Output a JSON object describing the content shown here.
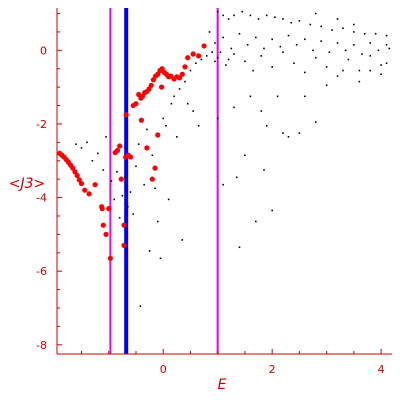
{
  "chart_data": {
    "type": "scatter",
    "title": "",
    "xlabel": "E",
    "ylabel": "<J3>",
    "xlim": [
      -1.95,
      4.2
    ],
    "ylim": [
      -8.25,
      1.15
    ],
    "xticks": [
      0,
      2,
      4
    ],
    "yticks": [
      0,
      -2,
      -4,
      -6,
      -8
    ],
    "grid": false,
    "legend": "none",
    "vertical_lines": [
      {
        "x": -0.97,
        "color": "#ee00ee"
      },
      {
        "x": -0.68,
        "color": "#0000ff"
      },
      {
        "x": 1.0,
        "color": "#ee00ee"
      }
    ],
    "series": [
      {
        "color": "#ff0000",
        "marker": "large",
        "points": [
          [
            -1.9,
            -2.8
          ],
          [
            -1.86,
            -2.85
          ],
          [
            -1.82,
            -2.9
          ],
          [
            -1.78,
            -2.97
          ],
          [
            -1.74,
            -3.04
          ],
          [
            -1.7,
            -3.12
          ],
          [
            -1.66,
            -3.2
          ],
          [
            -1.62,
            -3.3
          ],
          [
            -1.58,
            -3.4
          ],
          [
            -1.54,
            -3.52
          ],
          [
            -1.5,
            -3.62
          ],
          [
            -1.44,
            -3.8
          ],
          [
            -1.36,
            -3.9
          ],
          [
            -1.25,
            -3.65
          ],
          [
            -1.13,
            -4.25
          ],
          [
            -1.12,
            -4.3
          ],
          [
            -1.1,
            -4.75
          ],
          [
            -1.05,
            -5.0
          ],
          [
            -1.0,
            -4.3
          ],
          [
            -0.97,
            -5.65
          ],
          [
            -0.88,
            -2.78
          ],
          [
            -0.84,
            -2.72
          ],
          [
            -0.8,
            -2.6
          ],
          [
            -0.77,
            -3.5
          ],
          [
            -0.72,
            -4.75
          ],
          [
            -0.72,
            -5.3
          ],
          [
            -0.69,
            -2.9
          ],
          [
            -0.68,
            -1.75
          ],
          [
            -0.64,
            -2.85
          ],
          [
            -0.6,
            -2.9
          ],
          [
            -0.55,
            -1.5
          ],
          [
            -0.5,
            -1.45
          ],
          [
            -0.45,
            -1.2
          ],
          [
            -0.41,
            -1.3
          ],
          [
            -0.38,
            -1.25
          ],
          [
            -0.34,
            -1.15
          ],
          [
            -0.3,
            -1.12
          ],
          [
            -0.26,
            -1.05
          ],
          [
            -0.22,
            -0.95
          ],
          [
            -0.18,
            -0.8
          ],
          [
            -0.14,
            -0.7
          ],
          [
            -0.1,
            -0.65
          ],
          [
            -0.06,
            -0.55
          ],
          [
            -0.02,
            -0.5
          ],
          [
            0.02,
            -0.6
          ],
          [
            0.06,
            -0.65
          ],
          [
            0.1,
            -0.72
          ],
          [
            0.14,
            -0.7
          ],
          [
            0.2,
            -0.78
          ],
          [
            0.25,
            -0.72
          ],
          [
            0.3,
            -0.75
          ],
          [
            0.35,
            -0.65
          ],
          [
            0.4,
            -0.45
          ],
          [
            0.45,
            -0.2
          ],
          [
            0.55,
            -0.1
          ],
          [
            0.65,
            -0.15
          ],
          [
            0.75,
            0.12
          ],
          [
            -0.03,
            -1.0
          ],
          [
            -0.4,
            -1.9
          ],
          [
            -0.3,
            -2.65
          ],
          [
            -0.2,
            -3.5
          ],
          [
            -0.15,
            -3.2
          ],
          [
            -0.1,
            -2.3
          ]
        ]
      },
      {
        "color": "#000000",
        "marker": "small",
        "points": [
          [
            -1.6,
            -2.55
          ],
          [
            -1.5,
            -2.65
          ],
          [
            -1.4,
            -2.5
          ],
          [
            -1.3,
            -3.0
          ],
          [
            -1.2,
            -2.8
          ],
          [
            -1.1,
            -3.25
          ],
          [
            -1.05,
            -2.35
          ],
          [
            -0.95,
            -3.55
          ],
          [
            -0.9,
            -4.05
          ],
          [
            -0.85,
            -3.3
          ],
          [
            -0.8,
            -4.55
          ],
          [
            -0.75,
            -3.95
          ],
          [
            -0.7,
            -3.45
          ],
          [
            -0.65,
            -4.25
          ],
          [
            -0.6,
            -3.85
          ],
          [
            -0.55,
            -4.45
          ],
          [
            -0.5,
            -3.15
          ],
          [
            -0.45,
            -2.55
          ],
          [
            -0.42,
            -6.95
          ],
          [
            -0.35,
            -3.65
          ],
          [
            -0.3,
            -2.15
          ],
          [
            -0.25,
            -5.45
          ],
          [
            -0.2,
            -2.85
          ],
          [
            -0.15,
            -3.75
          ],
          [
            -0.1,
            -4.65
          ],
          [
            -0.05,
            -5.65
          ],
          [
            0.0,
            -1.85
          ],
          [
            0.05,
            -2.05
          ],
          [
            0.1,
            -4.05
          ],
          [
            0.15,
            -1.45
          ],
          [
            0.2,
            -1.25
          ],
          [
            0.25,
            -2.35
          ],
          [
            0.3,
            -1.05
          ],
          [
            0.35,
            -5.15
          ],
          [
            0.4,
            -0.85
          ],
          [
            0.45,
            -1.45
          ],
          [
            0.5,
            -0.55
          ],
          [
            0.55,
            -1.65
          ],
          [
            0.6,
            -0.35
          ],
          [
            0.65,
            -2.05
          ],
          [
            0.7,
            -0.25
          ],
          [
            0.8,
            -0.15
          ],
          [
            0.9,
            -0.05
          ],
          [
            0.95,
            -0.3
          ],
          [
            1.0,
            -1.85
          ],
          [
            1.05,
            -0.05
          ],
          [
            1.1,
            -3.65
          ],
          [
            1.2,
            -0.25
          ],
          [
            1.3,
            -1.55
          ],
          [
            1.35,
            -3.45
          ],
          [
            1.4,
            -5.35
          ],
          [
            1.5,
            -2.85
          ],
          [
            1.6,
            -1.25
          ],
          [
            1.7,
            -4.65
          ],
          [
            1.8,
            -1.65
          ],
          [
            1.85,
            -3.25
          ],
          [
            1.9,
            -2.05
          ],
          [
            2.0,
            -4.35
          ],
          [
            2.1,
            -1.25
          ],
          [
            2.2,
            -2.25
          ],
          [
            2.3,
            -2.35
          ],
          [
            2.5,
            -2.25
          ],
          [
            2.6,
            -1.25
          ],
          [
            2.8,
            -1.95
          ],
          [
            3.0,
            -0.95
          ],
          [
            3.3,
            -0.55
          ],
          [
            3.6,
            -0.85
          ],
          [
            3.8,
            -0.55
          ],
          [
            4.0,
            -0.65
          ],
          [
            4.1,
            -0.35
          ],
          [
            1.0,
            1.05
          ],
          [
            1.1,
            0.95
          ],
          [
            1.2,
            0.85
          ],
          [
            1.3,
            0.95
          ],
          [
            1.45,
            1.05
          ],
          [
            1.6,
            0.95
          ],
          [
            1.75,
            0.85
          ],
          [
            1.9,
            0.95
          ],
          [
            2.05,
            0.9
          ],
          [
            2.2,
            0.85
          ],
          [
            2.35,
            0.75
          ],
          [
            2.5,
            0.8
          ],
          [
            2.7,
            0.7
          ],
          [
            2.9,
            0.65
          ],
          [
            3.1,
            0.55
          ],
          [
            3.3,
            0.6
          ],
          [
            3.5,
            0.5
          ],
          [
            3.7,
            0.45
          ],
          [
            3.9,
            0.45
          ],
          [
            4.1,
            0.4
          ],
          [
            0.85,
            0.5
          ],
          [
            0.95,
            0.2
          ],
          [
            1.1,
            0.35
          ],
          [
            1.25,
            0.05
          ],
          [
            1.4,
            0.45
          ],
          [
            1.55,
            0.15
          ],
          [
            1.7,
            0.35
          ],
          [
            1.85,
            0.05
          ],
          [
            2.0,
            0.3
          ],
          [
            2.15,
            0.1
          ],
          [
            2.3,
            0.4
          ],
          [
            2.45,
            0.15
          ],
          [
            2.6,
            0.3
          ],
          [
            2.75,
            0.0
          ],
          [
            2.9,
            0.25
          ],
          [
            3.05,
            -0.05
          ],
          [
            3.2,
            0.2
          ],
          [
            3.35,
            0.0
          ],
          [
            3.5,
            0.15
          ],
          [
            3.65,
            -0.1
          ],
          [
            3.8,
            0.2
          ],
          [
            3.95,
            0.0
          ],
          [
            4.1,
            0.15
          ],
          [
            1.0,
            -0.2
          ],
          [
            1.15,
            -0.4
          ],
          [
            1.3,
            -0.1
          ],
          [
            1.5,
            -0.3
          ],
          [
            1.65,
            -0.55
          ],
          [
            1.8,
            -0.15
          ],
          [
            2.0,
            -0.45
          ],
          [
            2.2,
            -0.05
          ],
          [
            2.4,
            -0.35
          ],
          [
            2.6,
            -0.6
          ],
          [
            2.8,
            -0.2
          ],
          [
            3.0,
            -0.45
          ],
          [
            3.2,
            -0.7
          ],
          [
            3.4,
            -0.25
          ],
          [
            3.6,
            -0.55
          ],
          [
            3.8,
            -0.15
          ],
          [
            4.0,
            -0.4
          ],
          [
            4.15,
            0.05
          ],
          [
            3.5,
            0.7
          ],
          [
            3.2,
            0.85
          ],
          [
            2.8,
            1.0
          ]
        ]
      }
    ]
  }
}
